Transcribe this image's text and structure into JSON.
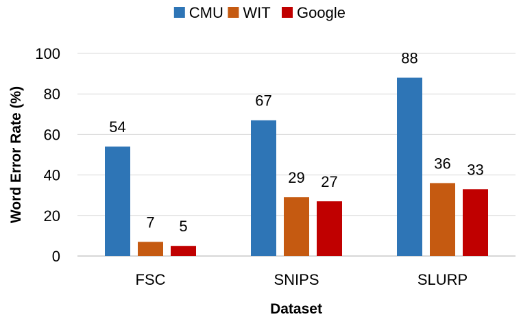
{
  "chart_data": {
    "type": "bar",
    "categories": [
      "FSC",
      "SNIPS",
      "SLURP"
    ],
    "series": [
      {
        "name": "CMU",
        "color": "#2e75b6",
        "values": [
          54,
          67,
          88
        ]
      },
      {
        "name": "WIT",
        "color": "#c55a11",
        "values": [
          7,
          29,
          36
        ]
      },
      {
        "name": "Google",
        "color": "#c00000",
        "values": [
          5,
          27,
          33
        ]
      }
    ],
    "xlabel": "Dataset",
    "ylabel": "Word Error Rate (%)",
    "ylim": [
      0,
      100
    ],
    "yticks": [
      0,
      20,
      40,
      60,
      80,
      100
    ],
    "grid": true,
    "legend": "top-center",
    "data_labels": true
  }
}
